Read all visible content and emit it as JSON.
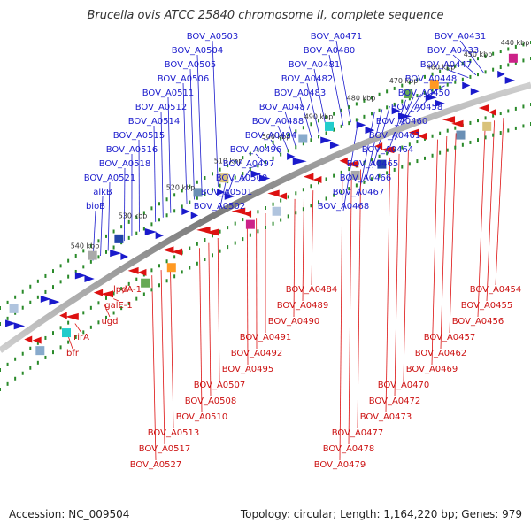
{
  "title": "Brucella ovis ATCC 25840 chromosome II, complete sequence",
  "footer": {
    "accession": "Accession: NC_009504",
    "stats": "Topology: circular; Length: 1,164,220 bp; Genes: 979"
  },
  "colors": {
    "forward": "#1a1acc",
    "reverse": "#dd1111",
    "backbone": "#888888",
    "tick_dot": "#2a8a2a"
  },
  "ticks": [
    "440 kbp",
    "450 kbp",
    "460 kbp",
    "470 kbp",
    "480 kbp",
    "490 kbp",
    "500 kbp",
    "510 kbp",
    "520 kbp",
    "530 kbp",
    "540 kbp"
  ],
  "labels_top": [
    "BOV_A0431",
    "BOV_A0433",
    "BOV_A0447",
    "BOV_A0448",
    "BOV_A0450",
    "BOV_A0458",
    "BOV_A0460",
    "BOV_A0461",
    "BOV_A0464",
    "BOV_A0465",
    "BOV_A0466",
    "BOV_A0467",
    "BOV_A0468",
    "BOV_A0471",
    "BOV_A0480",
    "BOV_A0481",
    "BOV_A0482",
    "BOV_A0483",
    "BOV_A0487",
    "BOV_A0488",
    "BOV_A0494",
    "BOV_A0496",
    "BOV_A0497",
    "BOV_A0500",
    "BOV_A0501",
    "BOV_A0502",
    "BOV_A0503",
    "BOV_A0504",
    "BOV_A0505",
    "BOV_A0506",
    "BOV_A0511",
    "BOV_A0512",
    "BOV_A0514",
    "BOV_A0515",
    "BOV_A0516",
    "BOV_A0518",
    "BOV_A0521",
    "alkB",
    "bioB"
  ],
  "labels_bottom": [
    "BOV_A0454",
    "BOV_A0455",
    "BOV_A0456",
    "BOV_A0457",
    "BOV_A0462",
    "BOV_A0469",
    "BOV_A0470",
    "BOV_A0472",
    "BOV_A0473",
    "BOV_A0477",
    "BOV_A0478",
    "BOV_A0479",
    "BOV_A0484",
    "BOV_A0489",
    "BOV_A0490",
    "BOV_A0491",
    "BOV_A0492",
    "BOV_A0495",
    "BOV_A0507",
    "BOV_A0508",
    "BOV_A0510",
    "BOV_A0513",
    "BOV_A0517",
    "BOV_A0527",
    "lpdA-1",
    "galE-1",
    "ugd",
    "rirA",
    "bfr"
  ]
}
